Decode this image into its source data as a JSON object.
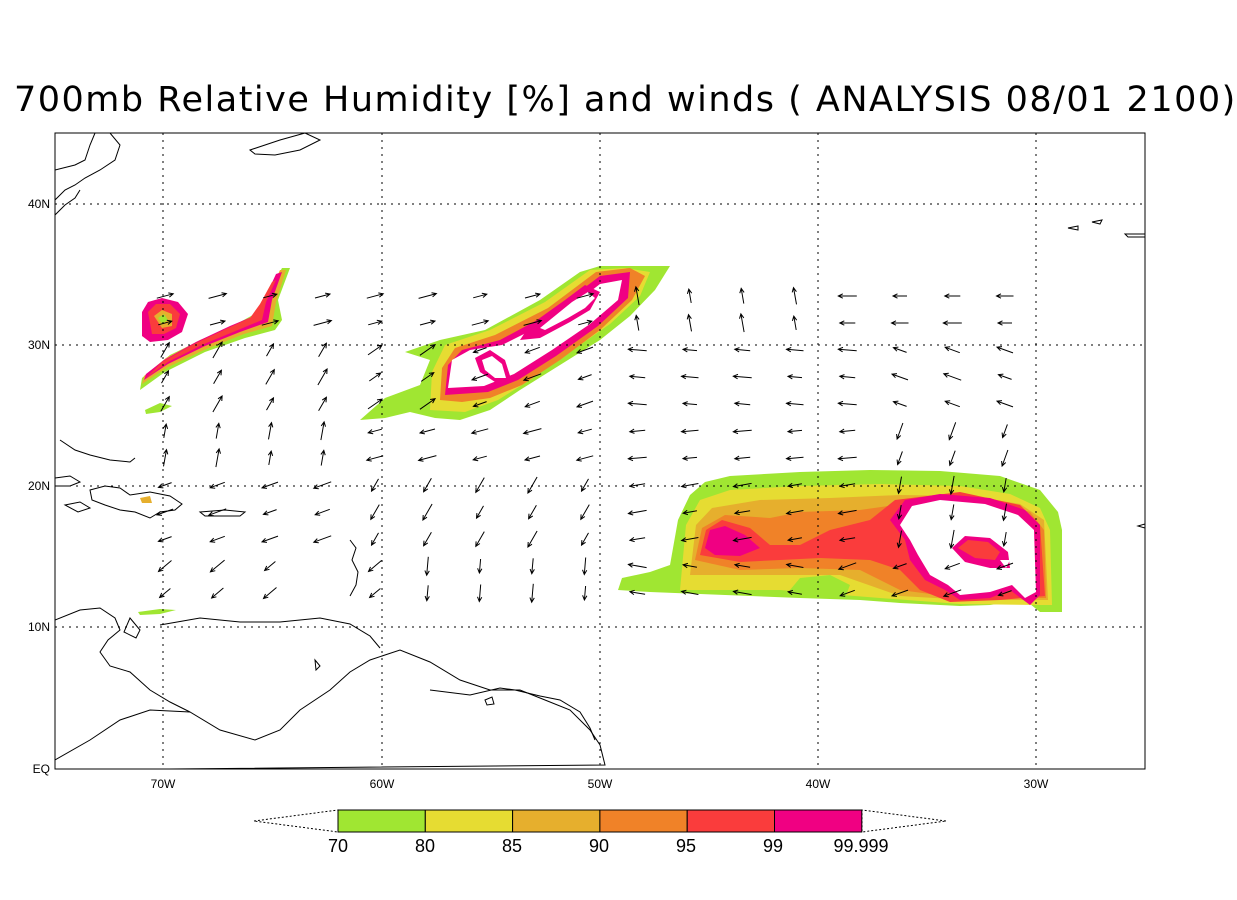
{
  "title": "700mb Relative Humidity [%] and winds ( ANALYSIS 08/01 2100)",
  "lat_labels": [
    "EQ",
    "10N",
    "20N",
    "30N",
    "40N"
  ],
  "lon_labels": [
    "70W",
    "60W",
    "50W",
    "40W",
    "30W"
  ],
  "colorbar": {
    "labels": [
      "70",
      "80",
      "85",
      "90",
      "95",
      "99",
      "99.999"
    ],
    "colors": [
      "#a0e632",
      "#e6dc32",
      "#e6af2d",
      "#f08228",
      "#fa3c3c",
      "#f00082"
    ]
  }
}
